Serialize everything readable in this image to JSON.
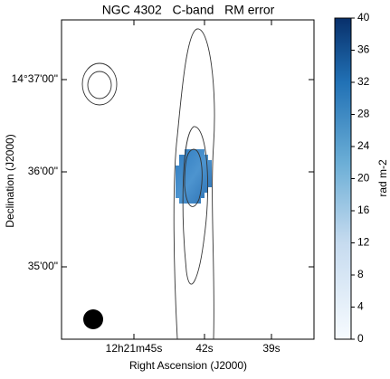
{
  "title": "NGC 4302   C-band   RM error",
  "x_axis": {
    "label": "Right Ascension (J2000)",
    "ticks": [
      "12h21m45s",
      "42s",
      "39s"
    ]
  },
  "y_axis": {
    "label": "Declination (J2000)",
    "ticks": [
      "14°37'00\"",
      "36'00\"",
      "35'00\""
    ]
  },
  "colorbar": {
    "label": "rad m-2",
    "lim": [
      0,
      40
    ],
    "ticks": [
      0,
      4,
      8,
      12,
      16,
      20,
      24,
      28,
      32,
      36,
      40
    ]
  }
}
